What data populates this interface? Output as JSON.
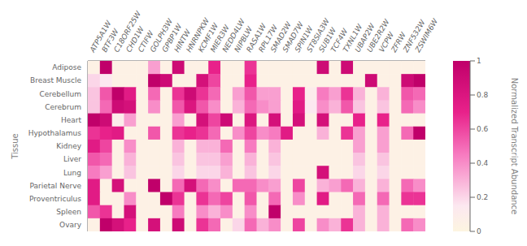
{
  "chart_data": {
    "type": "heatmap",
    "categories": [
      "ATP5A1W",
      "BTF3W",
      "C18ORF25W",
      "CHD1W",
      "CTIFW",
      "GOLPH3W",
      "GPBP1W",
      "HINTW",
      "HNRNPKW",
      "KCMF1W",
      "MIER3W",
      "NEDD4LW",
      "NIPBLW",
      "RASA1W",
      "RPL17W",
      "SMAD2W",
      "SMAD7W",
      "SPIN1W",
      "ST8SIA3W",
      "SUB1W",
      "TCF4W",
      "TXNL1W",
      "UBAP2W",
      "UBE2R2W",
      "VCPW",
      "ZFRW",
      "ZNF532W",
      "ZSWIM6W"
    ],
    "y_categories": [
      "Adipose",
      "Breast Muscle",
      "Cerebellum",
      "Cerebrum",
      "Heart",
      "Hypothalamus",
      "Kidney",
      "Liver",
      "Lung",
      "Parietal Nerve",
      "Proventriculus",
      "Spleen",
      "Ovary"
    ],
    "values": [
      [
        0.05,
        1.0,
        0.05,
        0.05,
        0.05,
        0.35,
        0.05,
        0.9,
        0.05,
        0.05,
        0.7,
        0.05,
        0.05,
        0.65,
        0.05,
        0.05,
        0.05,
        0.05,
        0.05,
        0.9,
        0.05,
        0.9,
        0.05,
        0.05,
        0.05,
        0.05,
        0.05,
        0.05
      ],
      [
        0.2,
        0.15,
        0.05,
        0.05,
        0.05,
        1.0,
        0.9,
        0.05,
        0.05,
        0.85,
        0.6,
        0.05,
        0.05,
        0.7,
        0.05,
        0.05,
        0.05,
        0.05,
        0.05,
        0.05,
        0.05,
        0.05,
        0.05,
        0.9,
        0.05,
        0.05,
        0.9,
        1.0
      ],
      [
        0.25,
        0.55,
        1.0,
        0.75,
        0.05,
        0.5,
        0.05,
        0.65,
        0.9,
        0.65,
        0.5,
        0.05,
        0.35,
        0.55,
        0.35,
        0.35,
        0.05,
        0.7,
        0.1,
        0.45,
        0.35,
        0.65,
        0.3,
        0.05,
        0.3,
        0.05,
        0.55,
        0.5
      ],
      [
        0.25,
        0.5,
        0.9,
        0.85,
        0.05,
        0.4,
        0.05,
        0.55,
        0.8,
        0.55,
        0.4,
        0.05,
        0.3,
        0.5,
        0.4,
        0.35,
        0.05,
        0.75,
        0.15,
        0.4,
        0.3,
        0.55,
        0.25,
        0.05,
        0.25,
        0.05,
        0.5,
        0.4
      ],
      [
        1.0,
        0.9,
        0.1,
        0.35,
        0.05,
        0.05,
        0.05,
        0.35,
        0.05,
        0.85,
        0.6,
        0.9,
        0.05,
        0.8,
        0.05,
        0.85,
        0.05,
        0.85,
        0.05,
        0.85,
        0.05,
        0.05,
        0.7,
        0.05,
        0.7,
        0.05,
        0.05,
        0.05
      ],
      [
        0.65,
        0.7,
        0.75,
        0.05,
        0.05,
        0.55,
        0.05,
        0.65,
        0.7,
        0.65,
        0.5,
        0.05,
        0.4,
        0.6,
        0.4,
        0.45,
        0.75,
        0.05,
        0.05,
        0.3,
        0.05,
        0.65,
        0.35,
        0.05,
        0.35,
        0.05,
        0.5,
        1.0
      ],
      [
        0.75,
        0.6,
        0.05,
        0.4,
        0.05,
        0.05,
        0.05,
        0.3,
        0.05,
        0.3,
        0.3,
        0.5,
        0.05,
        0.45,
        0.05,
        0.3,
        0.05,
        0.05,
        0.05,
        0.05,
        0.05,
        0.05,
        0.35,
        0.05,
        0.35,
        0.05,
        0.05,
        0.05
      ],
      [
        0.55,
        0.5,
        0.05,
        0.3,
        0.05,
        0.05,
        0.05,
        0.25,
        0.05,
        0.25,
        0.25,
        0.35,
        0.05,
        0.3,
        0.05,
        0.25,
        0.05,
        0.05,
        0.05,
        0.05,
        0.05,
        0.05,
        0.25,
        0.05,
        0.25,
        0.05,
        0.05,
        0.05
      ],
      [
        0.45,
        0.35,
        0.05,
        0.25,
        0.05,
        0.05,
        0.05,
        0.2,
        0.05,
        0.2,
        0.2,
        0.3,
        0.05,
        0.25,
        0.05,
        0.2,
        0.05,
        0.05,
        0.05,
        0.85,
        0.05,
        0.05,
        0.2,
        0.05,
        0.2,
        0.05,
        0.05,
        0.05
      ],
      [
        0.75,
        0.05,
        0.85,
        0.05,
        0.05,
        1.0,
        0.05,
        0.5,
        0.85,
        0.5,
        0.4,
        0.05,
        0.5,
        0.5,
        0.4,
        0.35,
        0.05,
        0.6,
        0.05,
        0.3,
        0.35,
        0.5,
        0.3,
        0.05,
        0.3,
        0.05,
        0.5,
        0.4
      ],
      [
        0.75,
        0.05,
        0.05,
        0.4,
        0.05,
        0.05,
        1.0,
        0.65,
        0.05,
        0.65,
        0.5,
        0.6,
        0.05,
        0.55,
        0.05,
        0.5,
        0.05,
        0.4,
        0.05,
        0.75,
        0.05,
        0.05,
        0.5,
        0.05,
        0.5,
        0.05,
        0.65,
        0.65
      ],
      [
        0.55,
        0.65,
        0.05,
        0.85,
        0.05,
        0.05,
        0.05,
        0.45,
        0.05,
        0.4,
        0.3,
        0.4,
        0.05,
        0.4,
        0.05,
        1.0,
        0.05,
        0.05,
        0.05,
        0.05,
        0.05,
        0.05,
        0.3,
        0.05,
        0.3,
        0.05,
        0.05,
        0.05
      ],
      [
        0.05,
        1.0,
        0.85,
        0.7,
        0.05,
        0.85,
        0.05,
        0.9,
        0.05,
        0.65,
        0.5,
        0.05,
        0.2,
        0.5,
        0.3,
        0.4,
        0.05,
        0.6,
        0.05,
        0.4,
        0.3,
        0.65,
        0.3,
        0.05,
        0.3,
        0.05,
        0.5,
        0.4
      ]
    ],
    "ylabel": "Tissue",
    "zlabel": "Normalized Transcript Abundance",
    "zlim": [
      0.0,
      1.0
    ],
    "zticks": [
      0,
      0.2,
      0.4,
      0.6,
      0.8,
      1
    ],
    "colors": [
      "#fdf5e0",
      "#fce8f0",
      "#f77bc0",
      "#e8218a",
      "#c0006a"
    ]
  }
}
